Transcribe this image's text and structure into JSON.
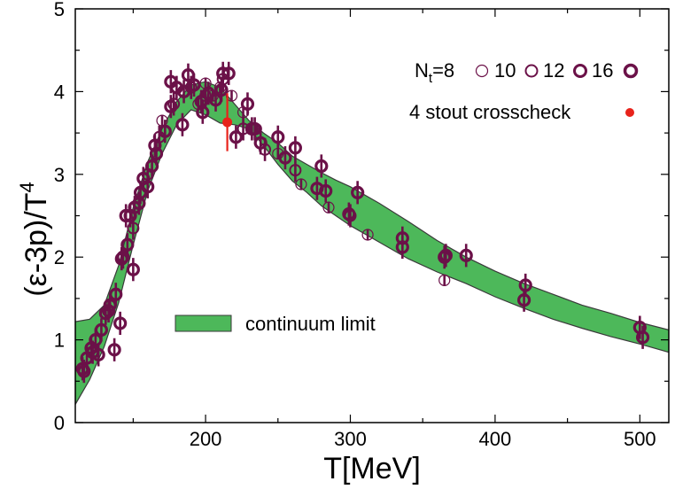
{
  "chart_data": {
    "type": "scatter",
    "xlabel": "T[MeV]",
    "ylabel": "(ε-3p)/T",
    "ylabel_superscript": "4",
    "xlim": [
      110,
      520
    ],
    "ylim": [
      0,
      5
    ],
    "xticks": [
      200,
      300,
      400,
      500
    ],
    "yticks": [
      0,
      1,
      2,
      3,
      4,
      5
    ],
    "grid": false,
    "colors": {
      "data": "#6b1148",
      "band": "#4db85a",
      "band_edge": "#3a3a3a",
      "crosscheck": "#e8231b"
    },
    "legend": {
      "nt_prefix": "N",
      "nt_sub": "t",
      "nt_eq": "=8",
      "nt_values": [
        "10",
        "12",
        "16"
      ],
      "crosscheck_label": "4 stout crosscheck",
      "band_label": "continuum limit"
    },
    "band": {
      "label": "continuum limit",
      "x": [
        110,
        120,
        130,
        140,
        150,
        160,
        170,
        180,
        190,
        200,
        210,
        220,
        230,
        240,
        250,
        260,
        270,
        280,
        290,
        300,
        320,
        340,
        360,
        380,
        400,
        420,
        440,
        460,
        480,
        500,
        520
      ],
      "upper": [
        1.22,
        1.25,
        1.42,
        1.9,
        2.6,
        3.15,
        3.55,
        3.88,
        4.08,
        4.12,
        4.05,
        3.85,
        3.65,
        3.5,
        3.38,
        3.22,
        3.12,
        3.02,
        2.93,
        2.85,
        2.65,
        2.43,
        2.2,
        2.0,
        1.83,
        1.68,
        1.55,
        1.42,
        1.32,
        1.21,
        1.12
      ],
      "lower": [
        0.22,
        0.52,
        0.92,
        1.45,
        2.15,
        2.8,
        3.25,
        3.6,
        3.78,
        3.72,
        3.62,
        3.6,
        3.55,
        3.35,
        3.12,
        2.92,
        2.78,
        2.62,
        2.5,
        2.38,
        2.18,
        1.98,
        1.82,
        1.68,
        1.52,
        1.38,
        1.25,
        1.14,
        1.04,
        0.95,
        0.85
      ]
    },
    "series": [
      {
        "name": "8",
        "marker": "thin-circle",
        "points": [
          [
            170,
            3.65
          ],
          [
            195,
            3.85
          ],
          [
            200,
            4.1
          ],
          [
            205,
            3.95
          ],
          [
            210,
            4.05
          ],
          [
            218,
            3.95
          ],
          [
            226,
            3.75
          ],
          [
            235,
            3.55
          ],
          [
            250,
            3.25
          ],
          [
            266,
            2.88
          ],
          [
            285,
            2.6
          ],
          [
            312,
            2.27
          ],
          [
            365,
            1.72
          ]
        ]
      },
      {
        "name": "10",
        "marker": "medium-circle",
        "points": [
          [
            150,
            2.35
          ],
          [
            160,
            3.0
          ],
          [
            168,
            3.45
          ],
          [
            178,
            3.85
          ],
          [
            190,
            4.05
          ],
          [
            200,
            3.95
          ],
          [
            212,
            4.15
          ],
          [
            226,
            3.55
          ],
          [
            241,
            3.3
          ],
          [
            262,
            3.05
          ],
          [
            300,
            2.5
          ]
        ]
      },
      {
        "name": "12",
        "marker": "thick-circle",
        "points": [
          [
            115,
            0.65
          ],
          [
            118,
            0.78
          ],
          [
            121,
            0.9
          ],
          [
            124,
            1.0
          ],
          [
            128,
            1.12
          ],
          [
            131,
            1.32
          ],
          [
            134,
            1.42
          ],
          [
            138,
            1.55
          ],
          [
            141,
            1.2
          ],
          [
            143,
            2.0
          ],
          [
            146,
            2.15
          ],
          [
            148,
            2.5
          ],
          [
            151,
            2.6
          ],
          [
            154,
            2.65
          ],
          [
            157,
            2.95
          ],
          [
            160,
            2.85
          ],
          [
            163,
            3.1
          ],
          [
            166,
            3.25
          ],
          [
            172,
            3.52
          ],
          [
            176,
            3.82
          ],
          [
            180,
            4.05
          ],
          [
            185,
            4.0
          ],
          [
            188,
            4.2
          ],
          [
            192,
            4.08
          ],
          [
            197,
            3.88
          ],
          [
            202,
            3.98
          ],
          [
            207,
            3.9
          ],
          [
            211,
            4.02
          ],
          [
            216,
            4.22
          ],
          [
            221,
            3.45
          ],
          [
            229,
            3.85
          ],
          [
            234,
            3.55
          ],
          [
            238,
            3.38
          ],
          [
            250,
            3.45
          ],
          [
            255,
            3.2
          ],
          [
            277,
            2.83
          ],
          [
            280,
            3.1
          ],
          [
            283,
            2.8
          ],
          [
            299,
            2.52
          ],
          [
            305,
            2.78
          ],
          [
            336,
            2.23
          ],
          [
            336,
            2.12
          ],
          [
            365,
            2.0
          ],
          [
            366,
            2.02
          ],
          [
            380,
            2.02
          ],
          [
            420,
            1.48
          ],
          [
            421,
            1.66
          ],
          [
            500,
            1.15
          ],
          [
            502,
            1.03
          ]
        ]
      },
      {
        "name": "16",
        "marker": "thick-circle",
        "points": [
          [
            116,
            0.62
          ],
          [
            122,
            0.85
          ],
          [
            126,
            0.82
          ],
          [
            133,
            1.35
          ],
          [
            137,
            0.88
          ],
          [
            142,
            1.98
          ],
          [
            145,
            2.5
          ],
          [
            150,
            1.85
          ],
          [
            155,
            2.78
          ],
          [
            165,
            3.35
          ],
          [
            176,
            4.12
          ],
          [
            184,
            3.6
          ],
          [
            198,
            3.75
          ],
          [
            212,
            4.22
          ],
          [
            232,
            3.55
          ],
          [
            262,
            3.32
          ]
        ]
      }
    ],
    "crosscheck": {
      "label": "4 stout crosscheck",
      "x": 215,
      "y": 3.63,
      "err": 0.35
    }
  }
}
